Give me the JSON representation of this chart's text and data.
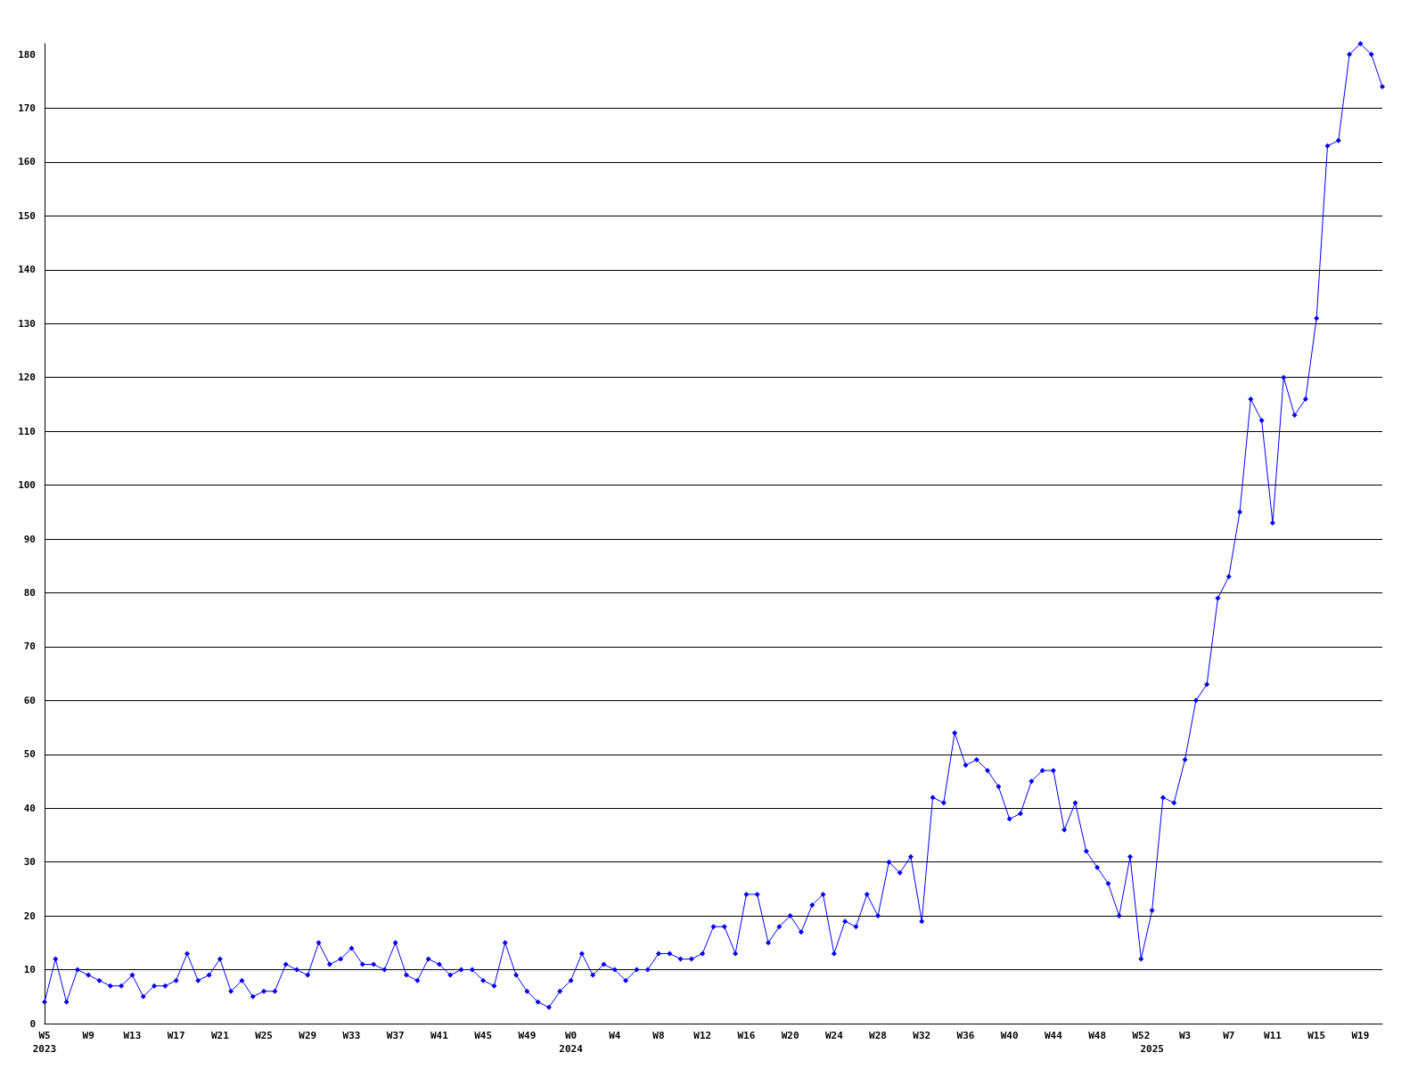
{
  "chart_data": {
    "type": "line",
    "categories": [
      "W5\n2023",
      null,
      null,
      null,
      "W9",
      null,
      null,
      null,
      "W13",
      null,
      null,
      null,
      "W17",
      null,
      null,
      null,
      "W21",
      null,
      null,
      null,
      "W25",
      null,
      null,
      null,
      "W29",
      null,
      null,
      null,
      "W33",
      null,
      null,
      null,
      "W37",
      null,
      null,
      null,
      "W41",
      null,
      null,
      null,
      "W45",
      null,
      null,
      null,
      "W49",
      null,
      null,
      null,
      "W0\n2024",
      null,
      null,
      null,
      "W4",
      null,
      null,
      null,
      "W8",
      null,
      null,
      null,
      "W12",
      null,
      null,
      null,
      "W16",
      null,
      null,
      null,
      "W20",
      null,
      null,
      null,
      "W24",
      null,
      null,
      null,
      "W28",
      null,
      null,
      null,
      "W32",
      null,
      null,
      null,
      "W36",
      null,
      null,
      null,
      "W40",
      null,
      null,
      null,
      "W44",
      null,
      null,
      null,
      "W48",
      null,
      null,
      null,
      "W52",
      "\n2025",
      null,
      null,
      "W3",
      null,
      null,
      null,
      "W7",
      null,
      null,
      null,
      "W11",
      null,
      null,
      null,
      "W15",
      null,
      null,
      null,
      "W19",
      null,
      null
    ],
    "values": [
      4,
      12,
      4,
      10,
      9,
      8,
      7,
      7,
      9,
      5,
      7,
      7,
      8,
      13,
      8,
      9,
      12,
      6,
      8,
      5,
      6,
      6,
      11,
      10,
      9,
      15,
      11,
      12,
      14,
      11,
      11,
      10,
      15,
      9,
      8,
      12,
      11,
      9,
      10,
      10,
      8,
      7,
      15,
      9,
      6,
      4,
      3,
      6,
      8,
      13,
      9,
      11,
      10,
      8,
      10,
      10,
      13,
      13,
      12,
      12,
      13,
      18,
      18,
      13,
      24,
      24,
      15,
      18,
      20,
      17,
      22,
      24,
      13,
      19,
      18,
      24,
      20,
      30,
      28,
      31,
      19,
      42,
      41,
      54,
      48,
      49,
      47,
      44,
      38,
      39,
      45,
      47,
      47,
      36,
      41,
      32,
      29,
      26,
      20,
      31,
      12,
      21,
      42,
      41,
      49,
      60,
      63,
      79,
      83,
      95,
      116,
      112,
      93,
      120,
      113,
      116,
      131,
      163,
      164,
      180,
      182,
      180,
      174
    ],
    "color": "#0000ff",
    "ylim": [
      0,
      182
    ],
    "yticks": [
      0,
      10,
      20,
      30,
      40,
      50,
      60,
      70,
      80,
      90,
      100,
      110,
      120,
      130,
      140,
      150,
      160,
      170,
      180
    ],
    "grid": "y",
    "marker": "diamond",
    "line_style": "solid"
  }
}
